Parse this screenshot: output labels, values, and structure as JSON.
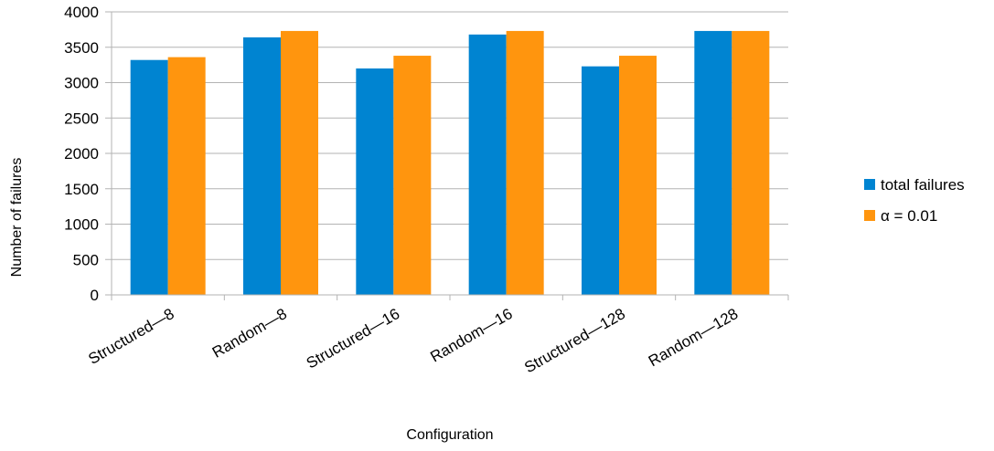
{
  "chart_data": {
    "type": "bar",
    "categories": [
      "Structured—8",
      "Random—8",
      "Structured—16",
      "Random—16",
      "Structured—128",
      "Random—128"
    ],
    "series": [
      {
        "name": "total failures",
        "color": "#0084d1",
        "values": [
          3320,
          3640,
          3200,
          3680,
          3230,
          3730
        ]
      },
      {
        "name": "α = 0.01",
        "color": "#ff950e",
        "values": [
          3360,
          3730,
          3380,
          3730,
          3380,
          3730
        ]
      }
    ],
    "title": "",
    "xlabel": "Configuration",
    "ylabel": "Number of failures",
    "ylim": [
      0,
      4000
    ],
    "yticks": [
      0,
      500,
      1000,
      1500,
      2000,
      2500,
      3000,
      3500,
      4000
    ],
    "grid": true,
    "legend_position": "right"
  }
}
